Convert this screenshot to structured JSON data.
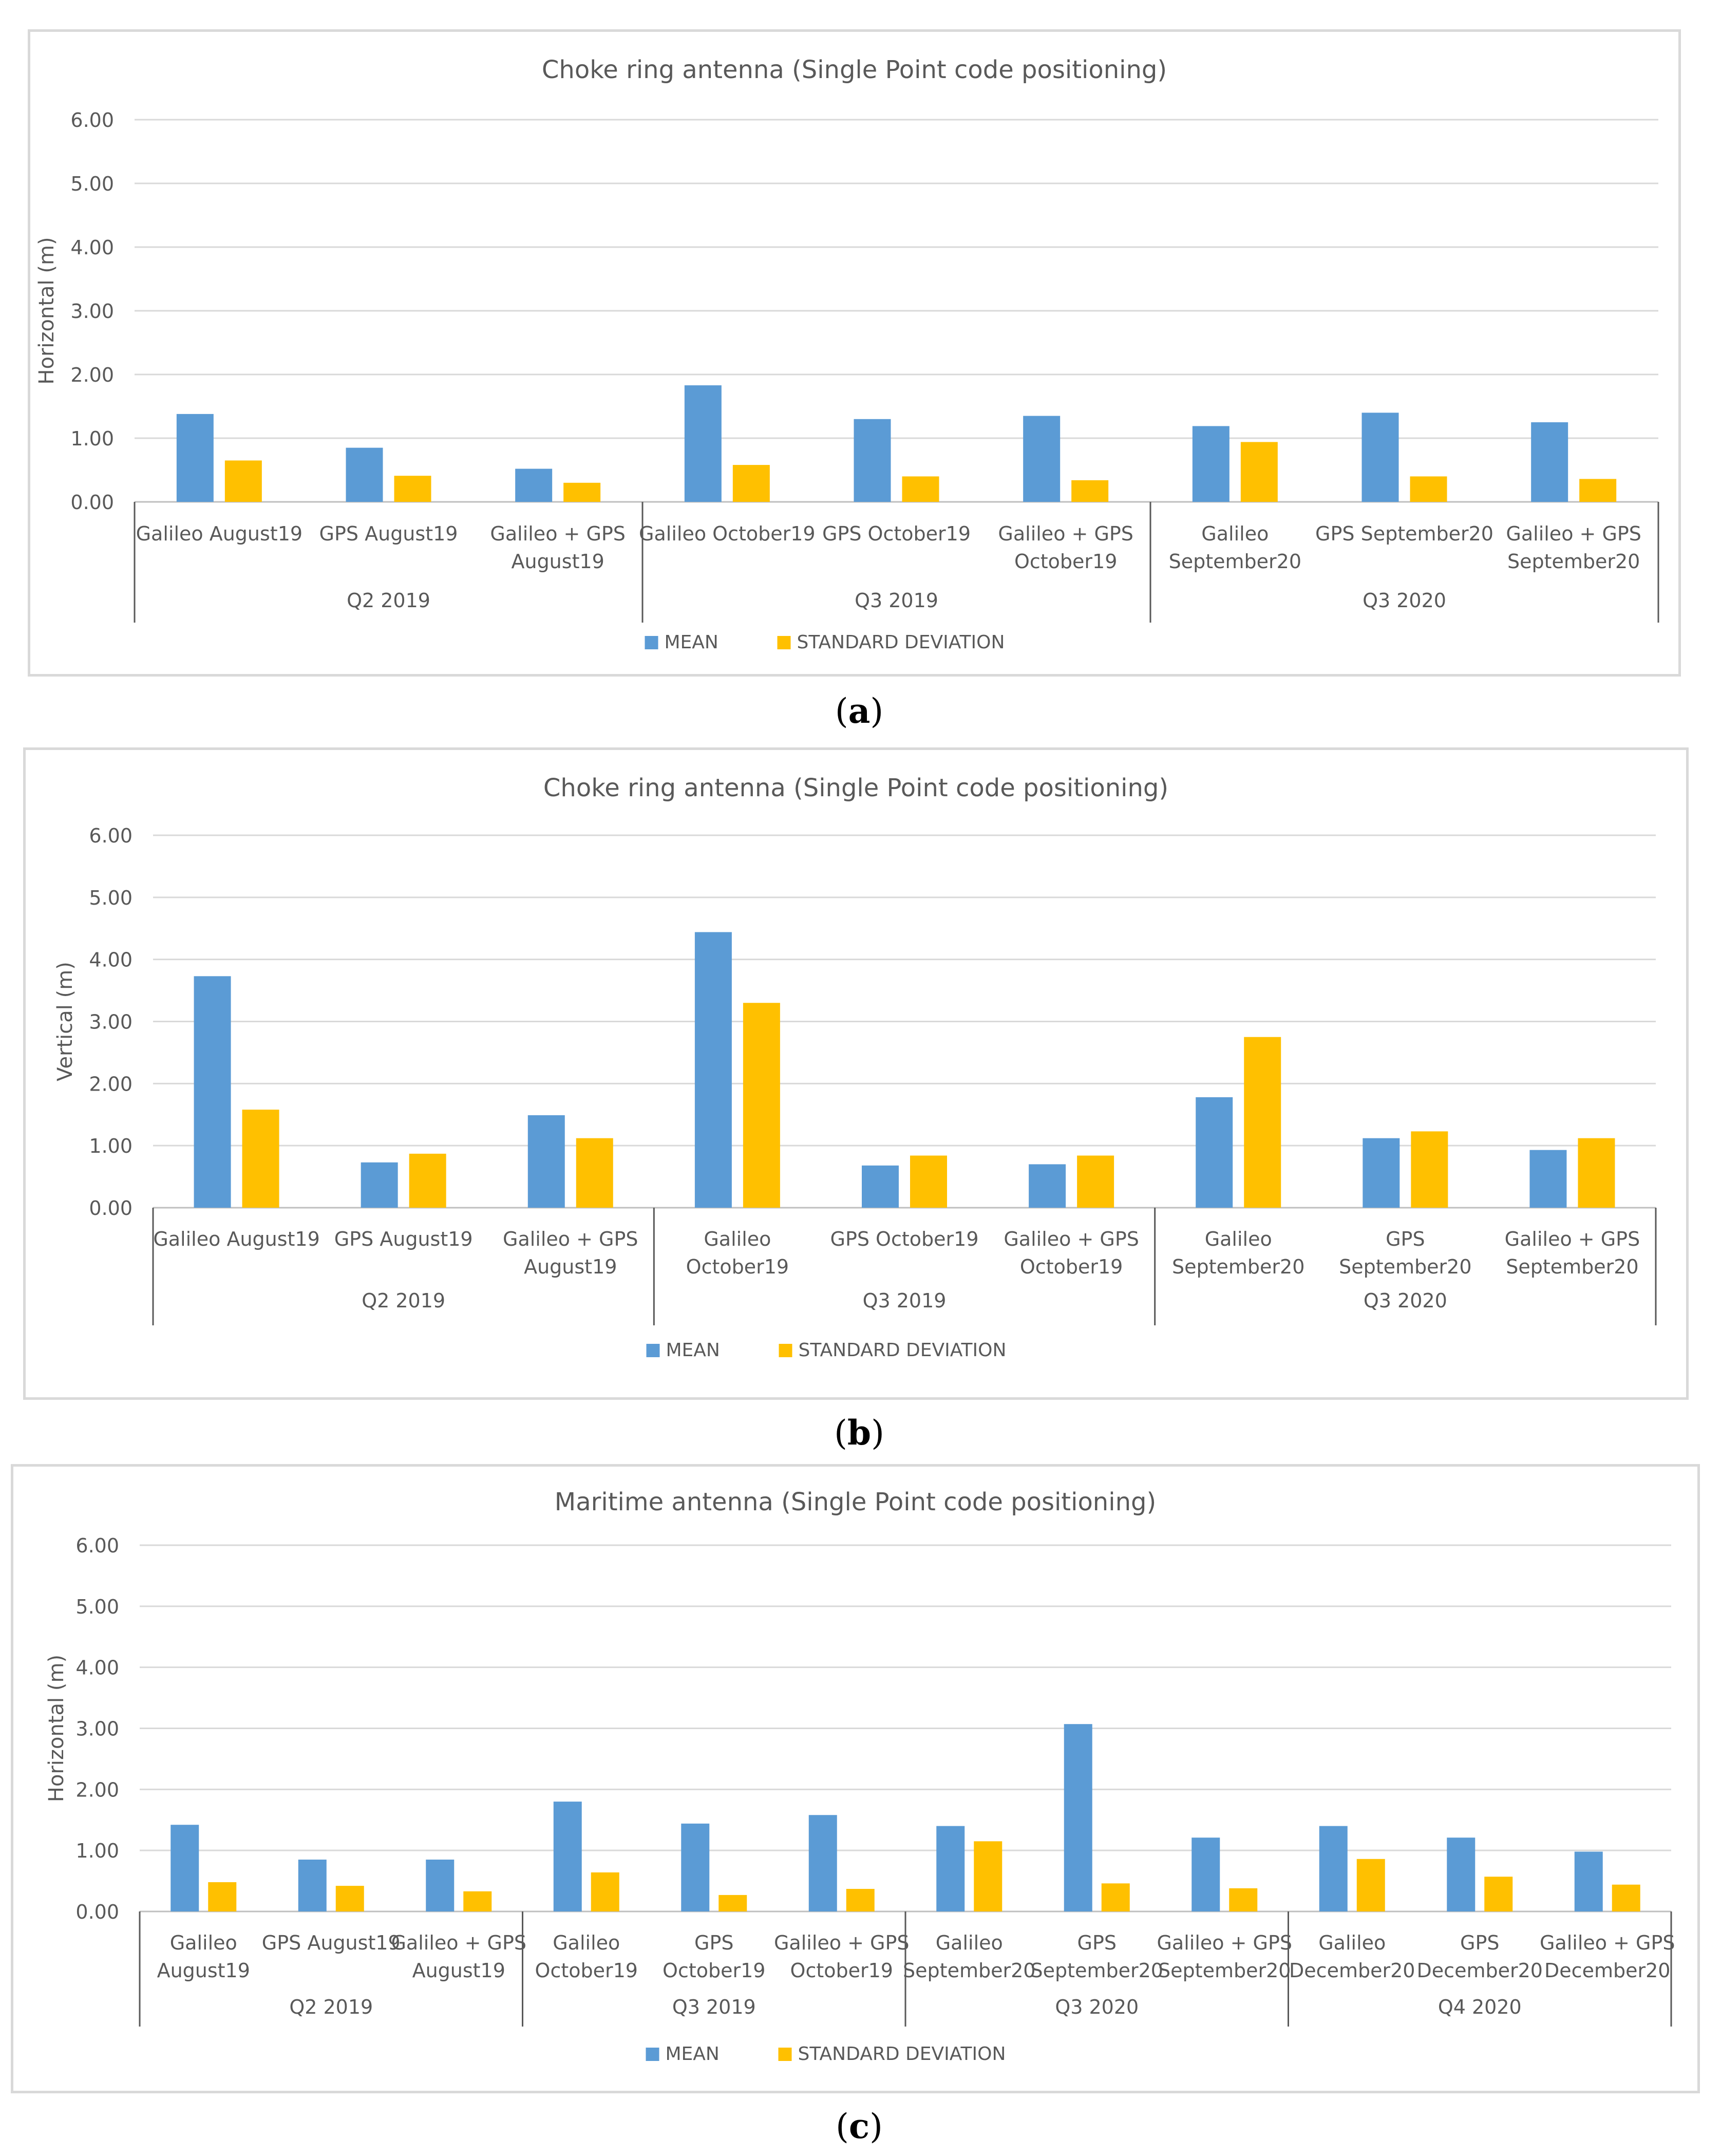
{
  "chart_data": [
    {
      "type": "bar",
      "title": "Choke ring antenna (Single Point code positioning)",
      "ylabel": "Horizontal (m)",
      "xlabel": "",
      "ylim": [
        0,
        6
      ],
      "yticks": [
        "0.00",
        "1.00",
        "2.00",
        "3.00",
        "4.00",
        "5.00",
        "6.00"
      ],
      "panel_label": "a",
      "categories": [
        [
          "Galileo August19"
        ],
        [
          "GPS August19"
        ],
        [
          "Galileo + GPS",
          "August19"
        ],
        [
          "Galileo October19"
        ],
        [
          "GPS October19"
        ],
        [
          "Galileo + GPS",
          "October19"
        ],
        [
          "Galileo",
          "September20"
        ],
        [
          "GPS September20"
        ],
        [
          "Galileo + GPS",
          "September20"
        ]
      ],
      "groups": [
        {
          "label": "Q2 2019",
          "count": 3
        },
        {
          "label": "Q3 2019",
          "count": 3
        },
        {
          "label": "Q3 2020",
          "count": 3
        }
      ],
      "series": [
        {
          "name": "MEAN",
          "color": "#5b9bd5",
          "values": [
            1.38,
            0.85,
            0.52,
            1.83,
            1.3,
            1.35,
            1.19,
            1.4,
            1.25
          ]
        },
        {
          "name": "STANDARD DEVIATION",
          "color": "#ffc000",
          "values": [
            0.65,
            0.41,
            0.3,
            0.58,
            0.4,
            0.34,
            0.94,
            0.4,
            0.36
          ]
        }
      ]
    },
    {
      "type": "bar",
      "title": "Choke ring antenna (Single Point code positioning)",
      "ylabel": "Vertical (m)",
      "xlabel": "",
      "ylim": [
        0,
        6
      ],
      "yticks": [
        "0.00",
        "1.00",
        "2.00",
        "3.00",
        "4.00",
        "5.00",
        "6.00"
      ],
      "panel_label": "b",
      "categories": [
        [
          "Galileo August19"
        ],
        [
          "GPS August19"
        ],
        [
          "Galileo + GPS",
          "August19"
        ],
        [
          "Galileo",
          "October19"
        ],
        [
          "GPS October19"
        ],
        [
          "Galileo + GPS",
          "October19"
        ],
        [
          "Galileo",
          "September20"
        ],
        [
          "GPS",
          "September20"
        ],
        [
          "Galileo + GPS",
          "September20"
        ]
      ],
      "groups": [
        {
          "label": "Q2 2019",
          "count": 3
        },
        {
          "label": "Q3 2019",
          "count": 3
        },
        {
          "label": "Q3 2020",
          "count": 3
        }
      ],
      "series": [
        {
          "name": "MEAN",
          "color": "#5b9bd5",
          "values": [
            3.73,
            0.73,
            1.49,
            4.44,
            0.68,
            0.7,
            1.78,
            1.12,
            0.93
          ]
        },
        {
          "name": "STANDARD DEVIATION",
          "color": "#ffc000",
          "values": [
            1.58,
            0.87,
            1.12,
            3.3,
            0.84,
            0.84,
            2.75,
            1.23,
            1.12
          ]
        }
      ]
    },
    {
      "type": "bar",
      "title": "Maritime antenna (Single Point code positioning)",
      "ylabel": "Horizontal (m)",
      "xlabel": "",
      "ylim": [
        0,
        6
      ],
      "yticks": [
        "0.00",
        "1.00",
        "2.00",
        "3.00",
        "4.00",
        "5.00",
        "6.00"
      ],
      "panel_label": "c",
      "categories": [
        [
          "Galileo",
          "August19"
        ],
        [
          "GPS August19"
        ],
        [
          "Galileo + GPS",
          "August19"
        ],
        [
          "Galileo",
          "October19"
        ],
        [
          "GPS",
          "October19"
        ],
        [
          "Galileo + GPS",
          "October19"
        ],
        [
          "Galileo",
          "September20"
        ],
        [
          "GPS",
          "September20"
        ],
        [
          "Galileo + GPS",
          "September20"
        ],
        [
          "Galileo",
          "December20"
        ],
        [
          "GPS",
          "December20"
        ],
        [
          "Galileo + GPS",
          "December20"
        ]
      ],
      "groups": [
        {
          "label": "Q2 2019",
          "count": 3
        },
        {
          "label": "Q3 2019",
          "count": 3
        },
        {
          "label": "Q3 2020",
          "count": 3
        },
        {
          "label": "Q4 2020",
          "count": 3
        }
      ],
      "series": [
        {
          "name": "MEAN",
          "color": "#5b9bd5",
          "values": [
            1.42,
            0.85,
            0.85,
            1.8,
            1.44,
            1.58,
            1.4,
            3.07,
            1.21,
            1.4,
            1.21,
            0.98
          ]
        },
        {
          "name": "STANDARD DEVIATION",
          "color": "#ffc000",
          "values": [
            0.48,
            0.42,
            0.33,
            0.64,
            0.27,
            0.37,
            1.15,
            0.46,
            0.38,
            0.86,
            0.57,
            0.44
          ]
        }
      ]
    }
  ]
}
